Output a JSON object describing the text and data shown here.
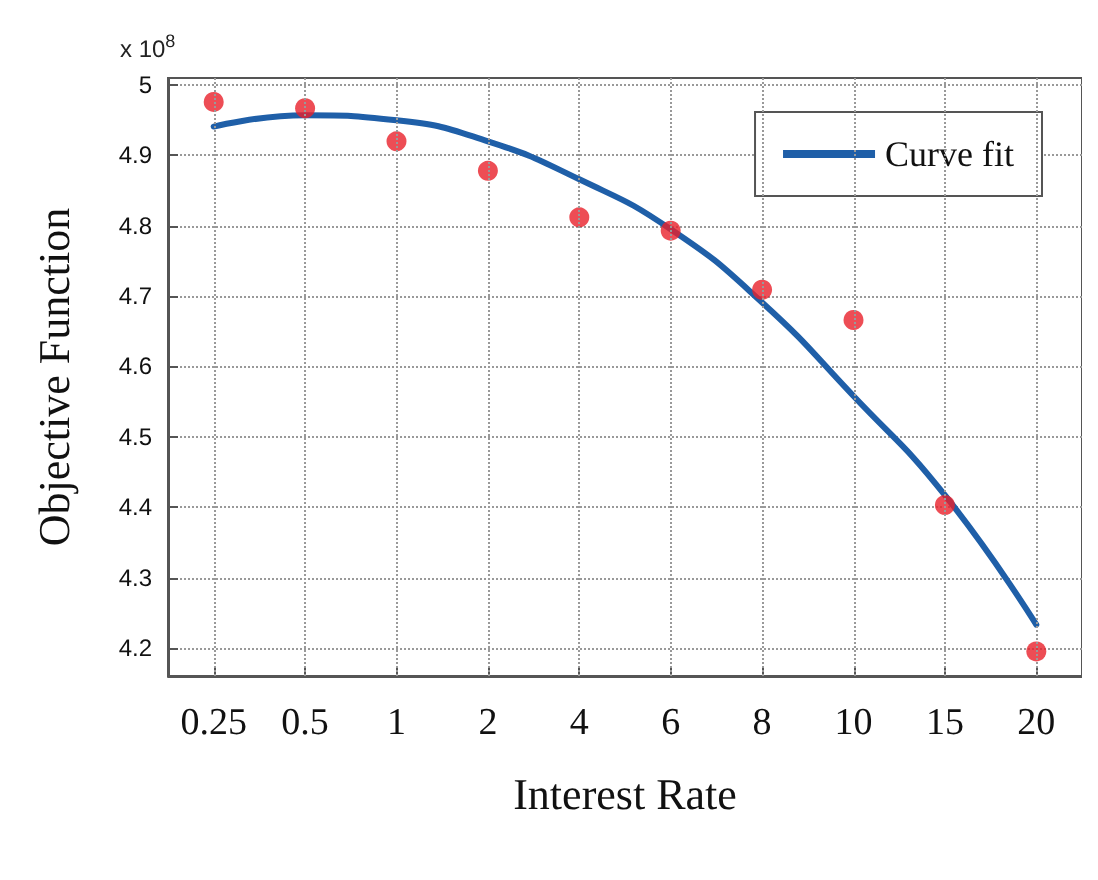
{
  "chart_data": {
    "type": "scatter",
    "xlabel": "Interest Rate",
    "ylabel": "Objective Function",
    "annotations": [
      "x 10$^{8}$"
    ],
    "categories": [
      "0.25",
      "0.5",
      "1",
      "2",
      "4",
      "6",
      "8",
      "10",
      "15",
      "20"
    ],
    "series": [
      {
        "color": "#e8202a",
        "marker": "circle",
        "values": [
          4.976,
          4.967,
          4.92,
          4.878,
          4.812,
          4.793,
          4.709,
          4.666,
          4.403,
          4.195
        ]
      },
      {
        "type": "line",
        "name": "Curve fit",
        "color": "#1f5fa8",
        "marker": "none",
        "line_style": "solid",
        "values": [
          4.941,
          4.957,
          4.95,
          4.92,
          4.866,
          4.795,
          4.691,
          4.558,
          4.417,
          4.233
        ]
      }
    ],
    "ylim": [
      4.16,
      5.01
    ],
    "yticks": [
      4.2,
      4.3,
      4.4,
      4.5,
      4.6,
      4.7,
      4.8,
      4.9,
      5
    ],
    "grid": true,
    "legend": "top right"
  }
}
